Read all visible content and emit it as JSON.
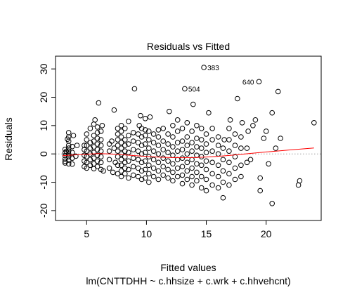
{
  "chart_data": {
    "type": "scatter",
    "title": "Residuals vs Fitted",
    "xlabel": "Fitted values",
    "ylabel": "Residuals",
    "subtitle": "lm(CNTTDHH ~ c.hhsize + c.wrk + c.hhvehcnt)",
    "xlim": [
      2.4,
      24.6
    ],
    "ylim": [
      -23.5,
      34.5
    ],
    "x_ticks": [
      5,
      10,
      15,
      20
    ],
    "y_ticks": [
      -20,
      -10,
      0,
      10,
      20,
      30
    ],
    "reference_line": {
      "y": 0,
      "style": "dotted",
      "color": "#9e9e9e"
    },
    "smoother_color": "#ff0000",
    "point_color": "#000000",
    "smoother": {
      "x": [
        3.0,
        4.0,
        5.0,
        6.0,
        7.0,
        8.0,
        9.0,
        10.0,
        11.0,
        12.0,
        13.0,
        14.0,
        15.0,
        16.0,
        17.0,
        18.0,
        19.0,
        20.0,
        21.0,
        22.0,
        23.0,
        24.0
      ],
      "y": [
        -0.6,
        -0.35,
        -0.1,
        0.1,
        0.0,
        -0.3,
        -0.6,
        -0.9,
        -1.15,
        -1.3,
        -1.35,
        -1.3,
        -1.1,
        -0.85,
        -0.5,
        -0.1,
        0.3,
        0.7,
        1.05,
        1.4,
        1.75,
        2.1
      ]
    },
    "outliers": [
      {
        "label": "383",
        "x": 14.8,
        "y": 30.5
      },
      {
        "label": "640",
        "x": 19.4,
        "y": 25.5
      },
      {
        "label": "504",
        "x": 13.2,
        "y": 23.0
      }
    ],
    "points": [
      [
        3.2,
        -3.2
      ],
      [
        3.2,
        -1.8
      ],
      [
        3.2,
        -0.6
      ],
      [
        3.2,
        0.4
      ],
      [
        3.2,
        1.6
      ],
      [
        3.2,
        -2.6
      ],
      [
        3.3,
        0.9
      ],
      [
        3.5,
        -3.5
      ],
      [
        3.5,
        -2.2
      ],
      [
        3.5,
        -1.0
      ],
      [
        3.5,
        0.0
      ],
      [
        3.5,
        1.0
      ],
      [
        3.5,
        2.0
      ],
      [
        3.5,
        3.0
      ],
      [
        3.5,
        4.5
      ],
      [
        3.5,
        6.0
      ],
      [
        3.5,
        7.5
      ],
      [
        3.4,
        5.2
      ],
      [
        3.8,
        -3.6
      ],
      [
        3.8,
        -1.5
      ],
      [
        3.8,
        0.5
      ],
      [
        3.8,
        2.6
      ],
      [
        3.9,
        6.5
      ],
      [
        4.2,
        3.0
      ],
      [
        4.1,
        -0.8
      ],
      [
        4.8,
        -4.5
      ],
      [
        4.8,
        -2.5
      ],
      [
        4.8,
        -0.5
      ],
      [
        4.8,
        1.5
      ],
      [
        4.8,
        3.0
      ],
      [
        5.0,
        -5.0
      ],
      [
        5.0,
        -3.0
      ],
      [
        5.0,
        -1.0
      ],
      [
        5.0,
        1.0
      ],
      [
        5.0,
        3.0
      ],
      [
        5.0,
        5.0
      ],
      [
        5.0,
        7.0
      ],
      [
        5.3,
        -4.0
      ],
      [
        5.3,
        -2.0
      ],
      [
        5.3,
        0.0
      ],
      [
        5.3,
        2.0
      ],
      [
        5.3,
        4.0
      ],
      [
        5.3,
        9.0
      ],
      [
        5.6,
        -5.2
      ],
      [
        5.6,
        -3.5
      ],
      [
        5.6,
        -1.5
      ],
      [
        5.6,
        0.5
      ],
      [
        5.6,
        2.5
      ],
      [
        5.6,
        4.5
      ],
      [
        5.6,
        6.5
      ],
      [
        5.6,
        10.5
      ],
      [
        5.7,
        12.0
      ],
      [
        5.9,
        -4.5
      ],
      [
        5.9,
        -2.5
      ],
      [
        5.9,
        -0.5
      ],
      [
        5.9,
        1.5
      ],
      [
        5.9,
        3.5
      ],
      [
        5.9,
        5.5
      ],
      [
        5.9,
        7.5
      ],
      [
        5.9,
        9.5
      ],
      [
        6.0,
        18.0
      ],
      [
        6.2,
        -5.5
      ],
      [
        6.2,
        -3.0
      ],
      [
        6.2,
        -1.0
      ],
      [
        6.2,
        1.0
      ],
      [
        6.2,
        3.0
      ],
      [
        6.2,
        5.0
      ],
      [
        6.2,
        8.0
      ],
      [
        6.3,
        10.0
      ],
      [
        6.4,
        -6.0
      ],
      [
        6.9,
        -5.0
      ],
      [
        6.9,
        -2.0
      ],
      [
        6.9,
        1.0
      ],
      [
        6.9,
        3.5
      ],
      [
        7.1,
        4.5
      ],
      [
        7.2,
        -6.5
      ],
      [
        7.3,
        2.0
      ],
      [
        7.3,
        15.5
      ],
      [
        7.4,
        -3.0
      ],
      [
        7.6,
        -7.0
      ],
      [
        7.6,
        -4.0
      ],
      [
        7.6,
        -1.0
      ],
      [
        7.6,
        1.0
      ],
      [
        7.6,
        3.0
      ],
      [
        7.6,
        5.0
      ],
      [
        7.6,
        7.0
      ],
      [
        7.6,
        9.0
      ],
      [
        7.9,
        -8.0
      ],
      [
        7.9,
        -6.0
      ],
      [
        7.9,
        -4.0
      ],
      [
        7.9,
        -2.0
      ],
      [
        7.9,
        0.0
      ],
      [
        7.9,
        2.0
      ],
      [
        7.9,
        4.0
      ],
      [
        7.9,
        6.0
      ],
      [
        7.9,
        8.0
      ],
      [
        7.9,
        10.0
      ],
      [
        8.2,
        -7.0
      ],
      [
        8.2,
        -5.0
      ],
      [
        8.2,
        -3.0
      ],
      [
        8.2,
        -1.0
      ],
      [
        8.2,
        1.0
      ],
      [
        8.2,
        3.0
      ],
      [
        8.2,
        5.0
      ],
      [
        8.2,
        9.0
      ],
      [
        8.5,
        -8.5
      ],
      [
        8.5,
        -5.5
      ],
      [
        8.5,
        -2.5
      ],
      [
        8.5,
        0.5
      ],
      [
        8.5,
        3.5
      ],
      [
        8.5,
        6.5
      ],
      [
        8.5,
        11.5
      ],
      [
        8.9,
        -7.5
      ],
      [
        8.9,
        -4.5
      ],
      [
        8.9,
        -1.5
      ],
      [
        8.9,
        1.5
      ],
      [
        8.9,
        4.5
      ],
      [
        8.9,
        7.5
      ],
      [
        9.0,
        23.0
      ],
      [
        9.3,
        -8.0
      ],
      [
        9.3,
        -5.0
      ],
      [
        9.3,
        -2.0
      ],
      [
        9.3,
        1.0
      ],
      [
        9.3,
        4.0
      ],
      [
        9.3,
        7.0
      ],
      [
        9.4,
        10.0
      ],
      [
        9.5,
        13.5
      ],
      [
        9.6,
        -9.0
      ],
      [
        9.6,
        -6.0
      ],
      [
        9.6,
        -3.0
      ],
      [
        9.6,
        0.0
      ],
      [
        9.6,
        3.0
      ],
      [
        9.6,
        6.0
      ],
      [
        9.6,
        9.0
      ],
      [
        9.9,
        -8.5
      ],
      [
        9.9,
        -5.5
      ],
      [
        9.9,
        -2.5
      ],
      [
        9.9,
        0.5
      ],
      [
        9.9,
        3.5
      ],
      [
        9.9,
        6.5
      ],
      [
        9.9,
        8.5
      ],
      [
        9.9,
        12.5
      ],
      [
        10.2,
        -10.0
      ],
      [
        10.2,
        -7.0
      ],
      [
        10.2,
        -4.0
      ],
      [
        10.2,
        -1.0
      ],
      [
        10.2,
        2.0
      ],
      [
        10.2,
        5.0
      ],
      [
        10.2,
        8.0
      ],
      [
        10.3,
        13.0
      ],
      [
        10.6,
        -8.0
      ],
      [
        10.6,
        -5.0
      ],
      [
        10.6,
        -2.0
      ],
      [
        10.6,
        1.0
      ],
      [
        10.6,
        4.0
      ],
      [
        10.6,
        7.0
      ],
      [
        11.0,
        -9.0
      ],
      [
        11.0,
        -6.0
      ],
      [
        11.0,
        -3.0
      ],
      [
        11.0,
        0.0
      ],
      [
        11.0,
        3.0
      ],
      [
        11.0,
        6.0
      ],
      [
        11.0,
        8.5
      ],
      [
        11.4,
        -7.5
      ],
      [
        11.4,
        -4.5
      ],
      [
        11.4,
        -1.5
      ],
      [
        11.4,
        1.5
      ],
      [
        11.4,
        4.5
      ],
      [
        11.4,
        9.0
      ],
      [
        11.8,
        -8.5
      ],
      [
        11.8,
        -5.5
      ],
      [
        11.8,
        -2.5
      ],
      [
        11.8,
        0.5
      ],
      [
        11.8,
        3.5
      ],
      [
        11.8,
        7.0
      ],
      [
        11.9,
        15.0
      ],
      [
        12.2,
        -9.5
      ],
      [
        12.2,
        -6.5
      ],
      [
        12.2,
        -3.5
      ],
      [
        12.2,
        -0.5
      ],
      [
        12.2,
        2.5
      ],
      [
        12.2,
        6.0
      ],
      [
        12.2,
        10.0
      ],
      [
        12.6,
        -8.0
      ],
      [
        12.6,
        -5.0
      ],
      [
        12.6,
        -2.0
      ],
      [
        12.6,
        1.0
      ],
      [
        12.6,
        4.0
      ],
      [
        12.6,
        8.0
      ],
      [
        12.6,
        12.0
      ],
      [
        13.0,
        -10.5
      ],
      [
        13.0,
        -7.5
      ],
      [
        13.0,
        -4.5
      ],
      [
        13.0,
        -1.5
      ],
      [
        13.0,
        1.5
      ],
      [
        13.0,
        4.5
      ],
      [
        13.0,
        9.0
      ],
      [
        13.4,
        -9.0
      ],
      [
        13.4,
        -6.0
      ],
      [
        13.4,
        -3.0
      ],
      [
        13.4,
        0.0
      ],
      [
        13.4,
        3.0
      ],
      [
        13.4,
        6.0
      ],
      [
        13.4,
        11.0
      ],
      [
        13.8,
        -11.0
      ],
      [
        13.8,
        -8.0
      ],
      [
        13.8,
        -5.0
      ],
      [
        13.8,
        -2.0
      ],
      [
        13.8,
        1.0
      ],
      [
        13.8,
        4.0
      ],
      [
        13.8,
        8.0
      ],
      [
        13.9,
        17.5
      ],
      [
        14.2,
        -9.5
      ],
      [
        14.2,
        -6.5
      ],
      [
        14.2,
        -3.5
      ],
      [
        14.2,
        -0.5
      ],
      [
        14.2,
        2.5
      ],
      [
        14.2,
        5.5
      ],
      [
        14.2,
        10.0
      ],
      [
        14.6,
        -12.0
      ],
      [
        14.6,
        -8.0
      ],
      [
        14.6,
        -4.0
      ],
      [
        14.6,
        -1.0
      ],
      [
        14.6,
        2.0
      ],
      [
        14.6,
        5.0
      ],
      [
        14.6,
        9.0
      ],
      [
        15.0,
        -13.0
      ],
      [
        15.0,
        -9.0
      ],
      [
        15.0,
        -5.5
      ],
      [
        15.0,
        -2.5
      ],
      [
        15.0,
        0.5
      ],
      [
        15.0,
        3.5
      ],
      [
        15.0,
        7.0
      ],
      [
        15.2,
        14.5
      ],
      [
        15.5,
        -11.0
      ],
      [
        15.5,
        -7.0
      ],
      [
        15.5,
        -3.0
      ],
      [
        15.5,
        1.0
      ],
      [
        15.5,
        5.0
      ],
      [
        15.5,
        9.0
      ],
      [
        16.0,
        -12.0
      ],
      [
        16.0,
        -8.0
      ],
      [
        16.0,
        -4.0
      ],
      [
        16.0,
        0.0
      ],
      [
        16.0,
        3.0
      ],
      [
        16.0,
        6.0
      ],
      [
        16.4,
        -15.5
      ],
      [
        16.4,
        -10.0
      ],
      [
        16.4,
        -6.0
      ],
      [
        16.4,
        -2.0
      ],
      [
        16.4,
        2.0
      ],
      [
        16.5,
        5.0
      ],
      [
        16.9,
        -11.0
      ],
      [
        16.9,
        -7.0
      ],
      [
        16.9,
        -3.0
      ],
      [
        16.9,
        1.0
      ],
      [
        16.9,
        5.0
      ],
      [
        16.9,
        9.0
      ],
      [
        17.0,
        12.0
      ],
      [
        17.4,
        -9.0
      ],
      [
        17.4,
        -5.0
      ],
      [
        17.4,
        -1.0
      ],
      [
        17.4,
        3.0
      ],
      [
        17.4,
        7.0
      ],
      [
        17.6,
        19.5
      ],
      [
        17.9,
        -8.0
      ],
      [
        17.9,
        -4.0
      ],
      [
        17.9,
        2.0
      ],
      [
        17.9,
        6.0
      ],
      [
        18.0,
        11.0
      ],
      [
        18.4,
        -3.0
      ],
      [
        18.4,
        2.0
      ],
      [
        18.5,
        8.0
      ],
      [
        18.7,
        -2.0
      ],
      [
        18.9,
        10.0
      ],
      [
        19.1,
        12.0
      ],
      [
        19.5,
        -13.0
      ],
      [
        19.5,
        -8.5
      ],
      [
        19.8,
        5.5
      ],
      [
        20.0,
        8.0
      ],
      [
        20.2,
        -3.5
      ],
      [
        20.5,
        -17.5
      ],
      [
        20.5,
        14.5
      ],
      [
        20.8,
        2.0
      ],
      [
        21.0,
        22.0
      ],
      [
        21.2,
        5.5
      ],
      [
        22.7,
        -11.0
      ],
      [
        22.8,
        -9.5
      ],
      [
        24.0,
        11.0
      ]
    ]
  }
}
